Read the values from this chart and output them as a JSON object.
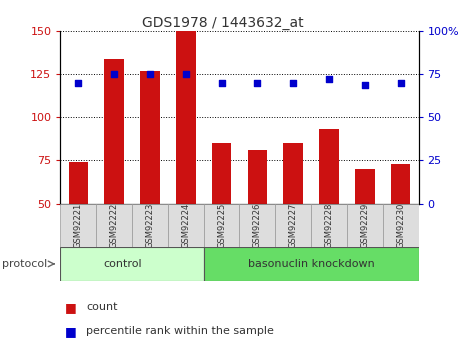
{
  "title": "GDS1978 / 1443632_at",
  "samples": [
    "GSM92221",
    "GSM92222",
    "GSM92223",
    "GSM92224",
    "GSM92225",
    "GSM92226",
    "GSM92227",
    "GSM92228",
    "GSM92229",
    "GSM92230"
  ],
  "counts": [
    74,
    134,
    127,
    150,
    85,
    81,
    85,
    93,
    70,
    73
  ],
  "percentiles": [
    70,
    75,
    75,
    75,
    70,
    70,
    70,
    72,
    69,
    70
  ],
  "bar_color": "#cc1111",
  "dot_color": "#0000cc",
  "ylim_left": [
    50,
    150
  ],
  "ylim_right": [
    0,
    100
  ],
  "yticks_left": [
    50,
    75,
    100,
    125,
    150
  ],
  "yticks_right": [
    0,
    25,
    50,
    75,
    100
  ],
  "ytick_labels_right": [
    "0",
    "25",
    "50",
    "75",
    "100%"
  ],
  "n_control": 4,
  "n_knockdown": 6,
  "control_label": "control",
  "knockdown_label": "basonuclin knockdown",
  "protocol_label": "protocol",
  "legend_count_label": "count",
  "legend_pct_label": "percentile rank within the sample",
  "grid_color": "#000000",
  "control_bg": "#ccffcc",
  "knockdown_bg": "#66dd66",
  "sample_bg": "#dddddd",
  "tick_label_color_left": "#cc1111",
  "tick_label_color_right": "#0000cc",
  "title_color": "#333333"
}
